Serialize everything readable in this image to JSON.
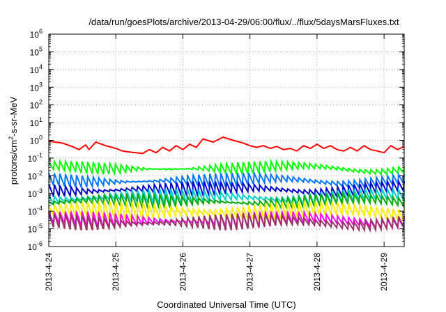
{
  "chart_data": {
    "type": "line",
    "title": "/data/run/goesPlots/archive/2013-04-29/06:00/flux/../flux/5daysMarsFluxes.txt",
    "xlabel": "Coordinated Universal Time (UTC)",
    "ylabel_main": "protons/cm",
    "ylabel_sup": "2",
    "ylabel_tail": "-s-sr-MeV",
    "x_ticks": [
      "2013-4-24",
      "2013-4-25",
      "2013-4-26",
      "2013-4-27",
      "2013-4-28",
      "2013-4-29"
    ],
    "x_range_days": [
      0,
      5.3
    ],
    "y_scale": "log",
    "y_range": [
      1e-06,
      1000000.0
    ],
    "y_ticks": [
      {
        "base": "10",
        "exp": "6"
      },
      {
        "base": "10",
        "exp": "5"
      },
      {
        "base": "10",
        "exp": "4"
      },
      {
        "base": "10",
        "exp": "3"
      },
      {
        "base": "10",
        "exp": "2"
      },
      {
        "base": "10",
        "exp": "1"
      },
      {
        "base": "10",
        "exp": "0"
      },
      {
        "base": "10",
        "exp": "-1"
      },
      {
        "base": "10",
        "exp": "-2"
      },
      {
        "base": "10",
        "exp": "-3"
      },
      {
        "base": "10",
        "exp": "-4"
      },
      {
        "base": "10",
        "exp": "-5"
      },
      {
        "base": "10",
        "exp": "-6"
      }
    ],
    "grid": true,
    "series": [
      {
        "color": "#ff0000",
        "points": [
          [
            0.0,
            0.9
          ],
          [
            0.2,
            0.7
          ],
          [
            0.35,
            0.45
          ],
          [
            0.45,
            0.3
          ],
          [
            0.55,
            0.55
          ],
          [
            0.6,
            0.3
          ],
          [
            0.7,
            0.8
          ],
          [
            0.85,
            0.5
          ],
          [
            1.0,
            0.35
          ],
          [
            1.1,
            0.25
          ],
          [
            1.2,
            0.22
          ],
          [
            1.3,
            0.2
          ],
          [
            1.4,
            0.18
          ],
          [
            1.5,
            0.3
          ],
          [
            1.6,
            0.2
          ],
          [
            1.7,
            0.4
          ],
          [
            1.8,
            0.25
          ],
          [
            1.9,
            0.5
          ],
          [
            2.0,
            0.3
          ],
          [
            2.1,
            0.6
          ],
          [
            2.2,
            0.4
          ],
          [
            2.3,
            1.2
          ],
          [
            2.45,
            0.8
          ],
          [
            2.6,
            1.5
          ],
          [
            2.75,
            1.0
          ],
          [
            2.9,
            0.7
          ],
          [
            3.0,
            0.5
          ],
          [
            3.1,
            0.4
          ],
          [
            3.2,
            0.5
          ],
          [
            3.3,
            0.35
          ],
          [
            3.4,
            0.45
          ],
          [
            3.5,
            0.3
          ],
          [
            3.6,
            0.35
          ],
          [
            3.7,
            0.25
          ],
          [
            3.8,
            0.5
          ],
          [
            3.9,
            0.35
          ],
          [
            4.0,
            0.6
          ],
          [
            4.1,
            0.35
          ],
          [
            4.2,
            0.5
          ],
          [
            4.3,
            0.3
          ],
          [
            4.4,
            0.25
          ],
          [
            4.5,
            0.4
          ],
          [
            4.6,
            0.25
          ],
          [
            4.7,
            0.5
          ],
          [
            4.8,
            0.3
          ],
          [
            4.9,
            0.25
          ],
          [
            5.0,
            0.2
          ],
          [
            5.1,
            0.5
          ],
          [
            5.2,
            0.3
          ],
          [
            5.3,
            0.45
          ]
        ]
      },
      {
        "color": "#00ff00",
        "base": 0.055,
        "low": 0.022
      },
      {
        "color": "#0077ff",
        "base": 0.012,
        "low": 0.004
      },
      {
        "color": "#0000cc",
        "base": 0.004,
        "low": 0.0012
      },
      {
        "color": "#00cccc",
        "base": 0.0015,
        "low": 0.0004
      },
      {
        "color": "#00aa00",
        "base": 0.0008,
        "low": 0.00025
      },
      {
        "color": "#ffee00",
        "base": 0.0003,
        "low": 5e-05
      },
      {
        "color": "#ff00ff",
        "base": 8e-05,
        "low": 2e-05
      },
      {
        "color": "#993366",
        "base": 6e-05,
        "low": 1.5e-05
      }
    ]
  }
}
